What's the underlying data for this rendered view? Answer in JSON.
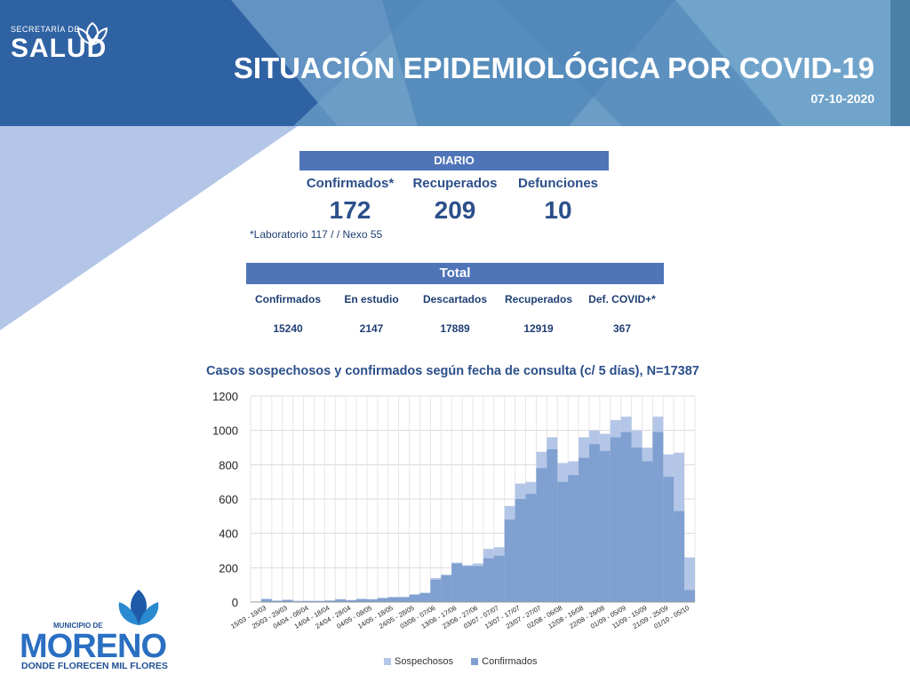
{
  "header": {
    "org_small": "SECRETARÍA DE",
    "org_big": "SALUD",
    "title": "SITUACIÓN EPIDEMIOLÓGICA POR COVID-19",
    "date": "07-10-2020"
  },
  "daily": {
    "title": "DIARIO",
    "items": [
      {
        "label": "Confirmados*",
        "value": "172"
      },
      {
        "label": "Recuperados",
        "value": "209"
      },
      {
        "label": "Defunciones",
        "value": "10"
      }
    ],
    "footnote": "*Laboratorio 117 / / Nexo 55"
  },
  "total": {
    "title": "Total",
    "items": [
      {
        "label": "Confirmados",
        "value": "15240"
      },
      {
        "label": "En estudio",
        "value": "2147"
      },
      {
        "label": "Descartados",
        "value": "17889"
      },
      {
        "label": "Recuperados",
        "value": "12919"
      },
      {
        "label": "Def. COVID+*",
        "value": "367"
      }
    ]
  },
  "chart_data": {
    "type": "bar",
    "stacked": false,
    "title": "Casos sospechosos y confirmados según fecha de consulta (c/ 5 días), N=17387",
    "xlabel": "",
    "ylabel": "",
    "ylim": [
      0,
      1200
    ],
    "yticks": [
      0,
      200,
      400,
      600,
      800,
      1000,
      1200
    ],
    "grid": true,
    "legend_position": "bottom",
    "x_tick_labels": [
      "15/03 - 19/03",
      "25/03 - 29/03",
      "04/04 - 08/04",
      "14/04 - 18/04",
      "24/04 - 28/04",
      "04/05 - 08/05",
      "14/05 - 18/05",
      "24/05 - 28/05",
      "03/06 - 07/06",
      "13/06 - 17/06",
      "23/06 - 27/06",
      "03/07 - 07/07",
      "13/07 - 17/07",
      "23/07 - 27/07",
      "02/08 - 06/08",
      "12/08 - 16/08",
      "22/08 - 26/08",
      "01/09 - 05/09",
      "11/09 - 15/09",
      "21/09 - 25/09",
      "01/10 - 05/10"
    ],
    "bars_per_label": 2,
    "series": [
      {
        "name": "Sospechosos",
        "color": "#b4c6e7",
        "values": [
          3,
          20,
          10,
          15,
          8,
          8,
          8,
          10,
          18,
          12,
          20,
          18,
          25,
          30,
          30,
          45,
          55,
          140,
          160,
          230,
          215,
          225,
          310,
          320,
          560,
          690,
          700,
          875,
          960,
          810,
          820,
          960,
          1000,
          980,
          1060,
          1080,
          1000,
          900,
          1080,
          860,
          870,
          260
        ]
      },
      {
        "name": "Confirmados",
        "color": "#7fa0d0",
        "values": [
          2,
          15,
          5,
          10,
          4,
          5,
          5,
          7,
          14,
          10,
          15,
          14,
          22,
          27,
          28,
          43,
          52,
          130,
          155,
          225,
          210,
          210,
          255,
          270,
          480,
          600,
          630,
          780,
          890,
          700,
          740,
          840,
          920,
          880,
          960,
          990,
          900,
          820,
          990,
          730,
          530,
          70
        ]
      }
    ]
  }
}
